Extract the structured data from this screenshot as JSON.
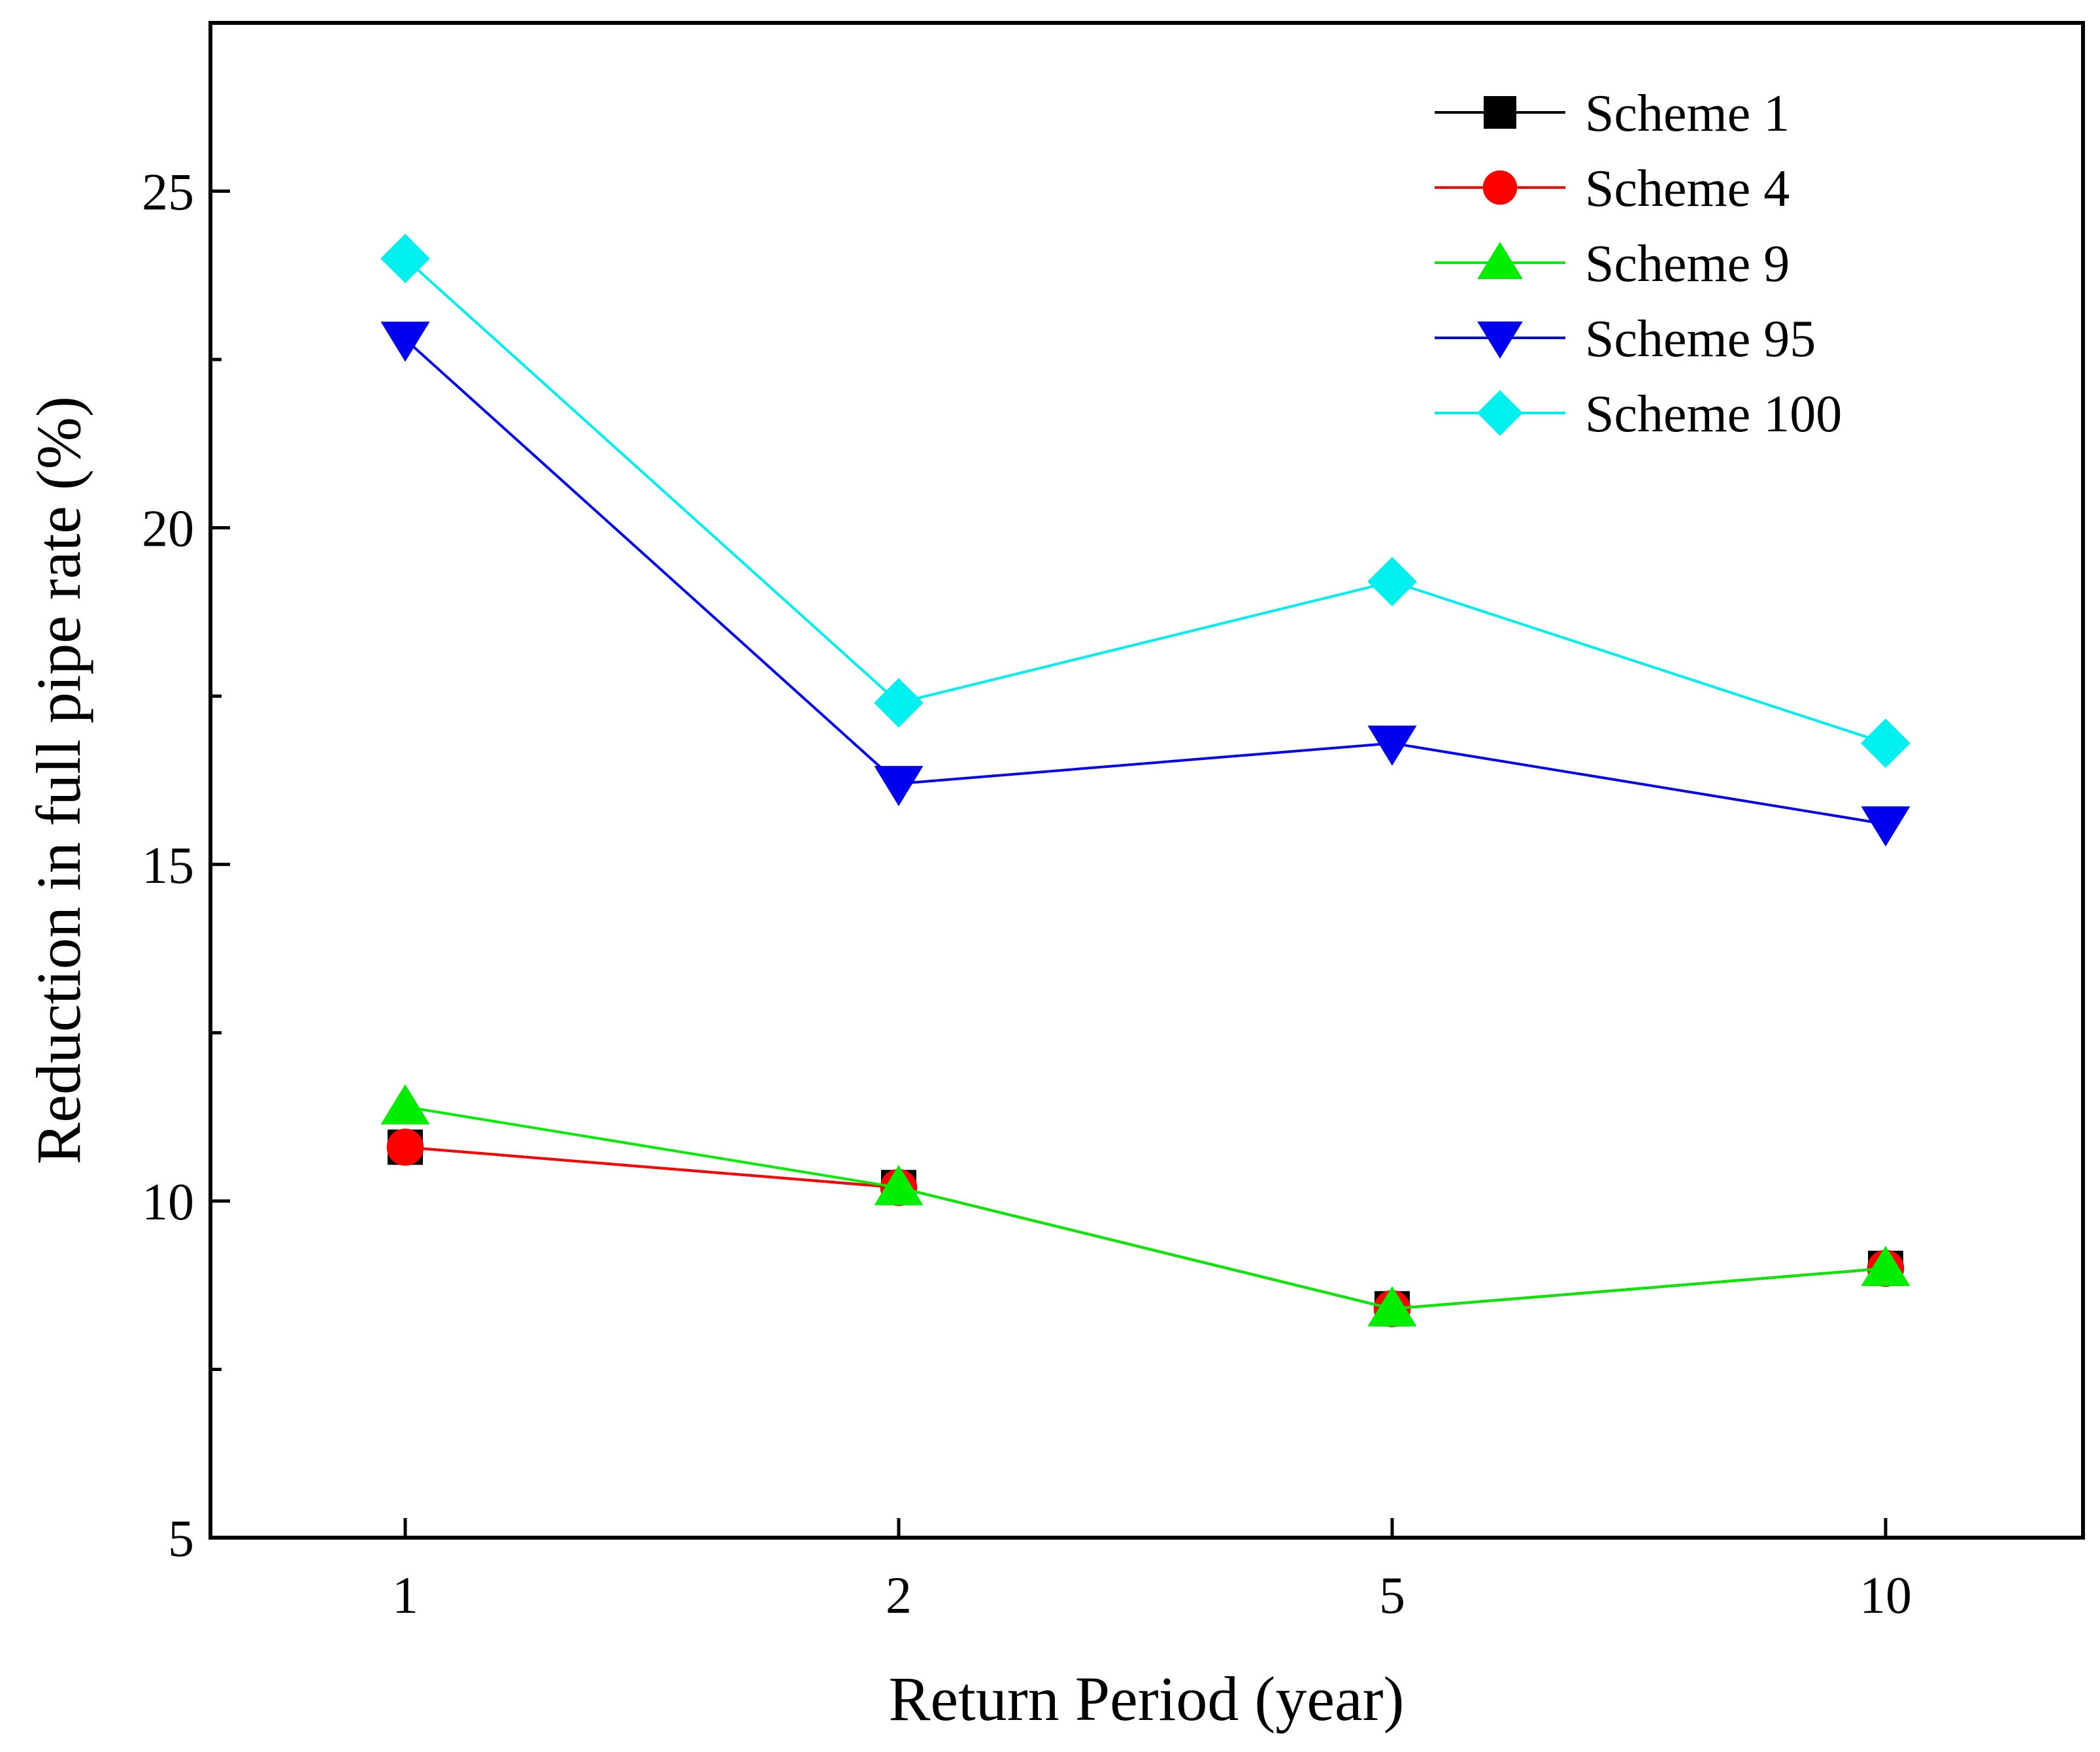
{
  "chart_data": {
    "type": "line",
    "title": "",
    "xlabel": "Return Period (year)",
    "ylabel": "Reduction in full pipe rate (%)",
    "categories": [
      "1",
      "2",
      "5",
      "10"
    ],
    "ylim": [
      5,
      27.5
    ],
    "yticks": [
      5,
      10,
      15,
      20,
      25
    ],
    "yticks_labels": [
      "5",
      "10",
      "15",
      "20",
      "25"
    ],
    "legend_position": "top-right",
    "series": [
      {
        "name": "Scheme 1",
        "color": "#000000",
        "marker": "square",
        "values": [
          10.8,
          10.2,
          8.4,
          9.0
        ]
      },
      {
        "name": "Scheme 4",
        "color": "#ff0000",
        "marker": "circle",
        "values": [
          10.8,
          10.2,
          8.4,
          9.0
        ]
      },
      {
        "name": "Scheme 9",
        "color": "#00ee00",
        "marker": "triangle-up",
        "values": [
          11.4,
          10.2,
          8.4,
          9.0
        ]
      },
      {
        "name": "Scheme 95",
        "color": "#0000ee",
        "marker": "triangle-down",
        "values": [
          22.8,
          16.2,
          16.8,
          15.6
        ]
      },
      {
        "name": "Scheme 100",
        "color": "#00f0f0",
        "marker": "diamond",
        "values": [
          24.0,
          17.4,
          19.2,
          16.8
        ]
      }
    ]
  }
}
